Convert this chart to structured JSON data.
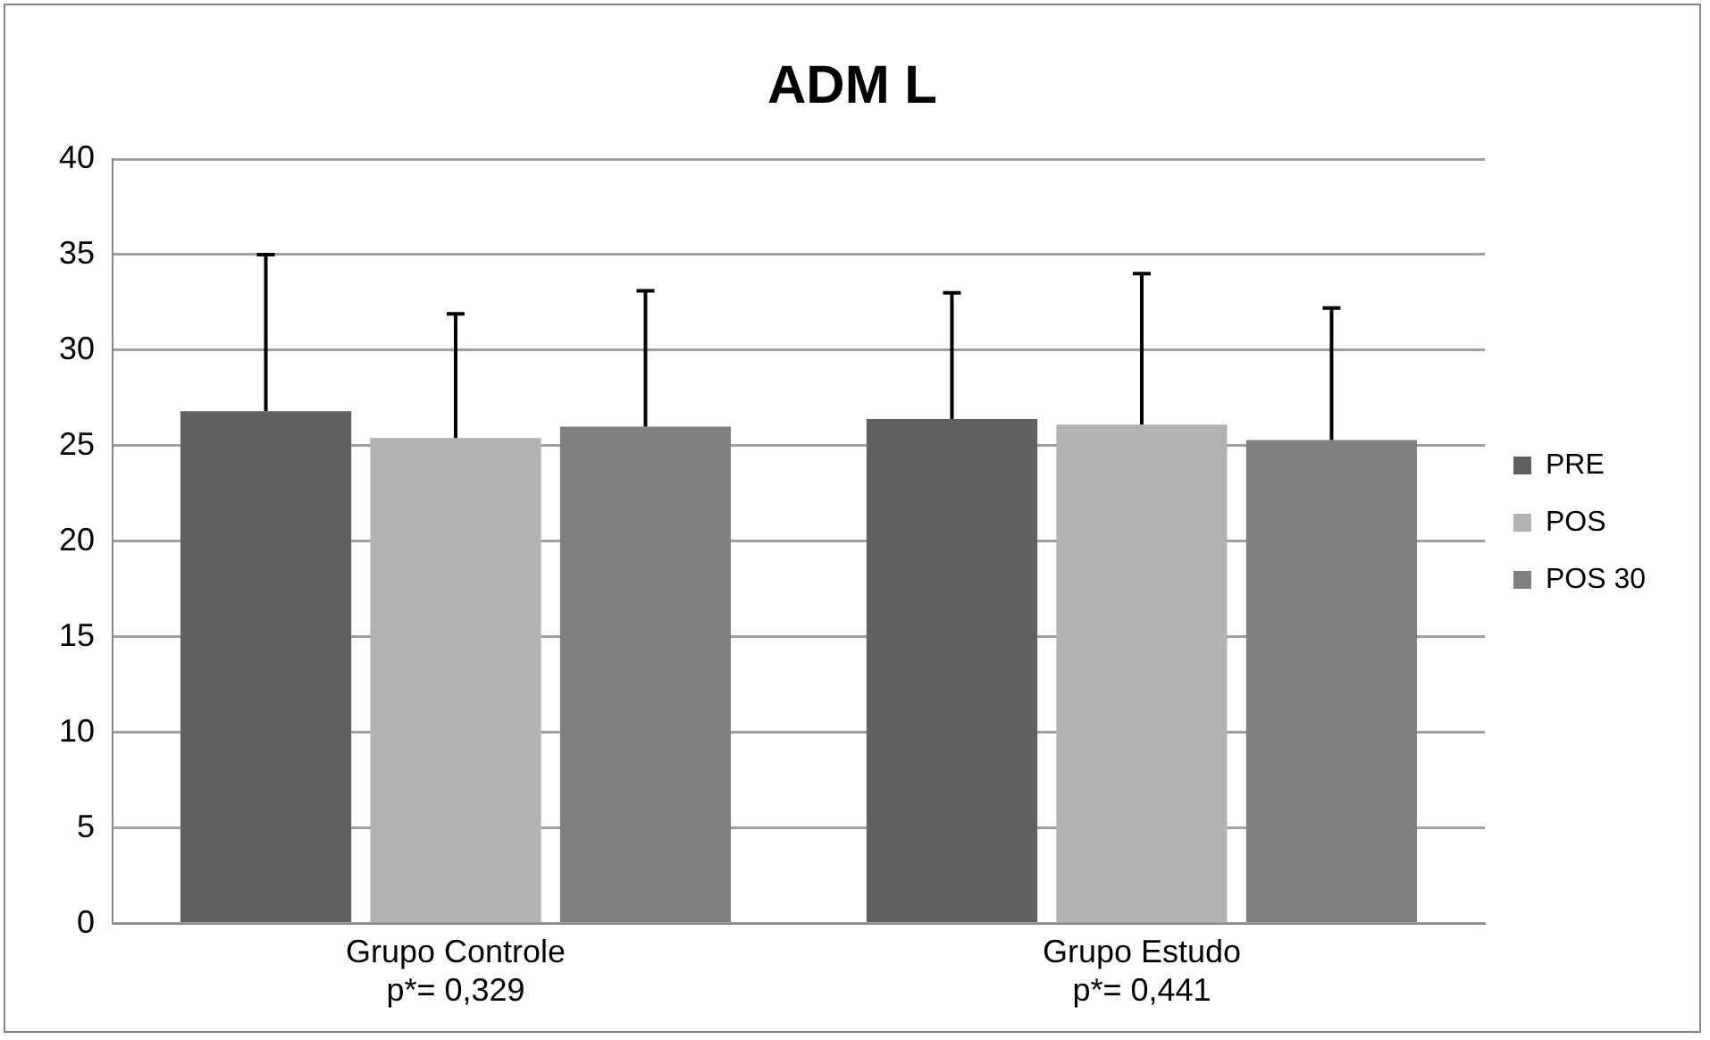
{
  "chart_data": {
    "type": "bar",
    "title": "ADM L",
    "categories": [
      "Grupo Controle\np*= 0,329",
      "Grupo Estudo\np*= 0,441"
    ],
    "series": [
      {
        "name": "PRE",
        "color": "#606060",
        "values": [
          26.8,
          26.4
        ],
        "errors": [
          [
            26.8,
            35.0
          ],
          [
            26.4,
            33.0
          ]
        ]
      },
      {
        "name": "POS",
        "color": "#b2b2b2",
        "values": [
          25.4,
          26.1
        ],
        "errors": [
          [
            25.4,
            31.9
          ],
          [
            26.1,
            34.0
          ]
        ]
      },
      {
        "name": "POS 30",
        "color": "#808080",
        "values": [
          26.0,
          25.3
        ],
        "errors": [
          [
            26.0,
            33.1
          ],
          [
            25.3,
            32.2
          ]
        ]
      }
    ],
    "ylim": [
      0,
      40
    ],
    "yticks": [
      0,
      5,
      10,
      15,
      20,
      25,
      30,
      35,
      40
    ],
    "grid": "y",
    "legend": "right"
  }
}
